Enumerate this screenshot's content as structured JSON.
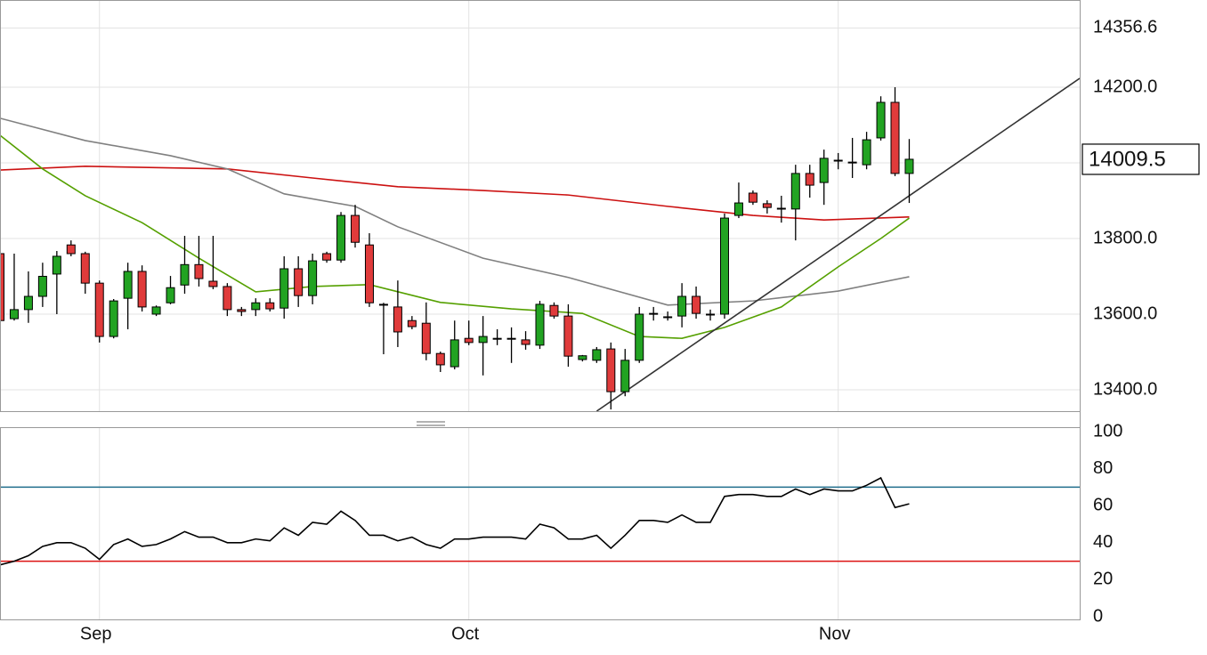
{
  "chart_data": [
    {
      "type": "candlestick",
      "xlim": [
        0,
        76
      ],
      "ylim": [
        13343.5,
        14430.6
      ],
      "yticks": [
        {
          "value": 13400,
          "label": "13400.0"
        },
        {
          "value": 13600,
          "label": "13600.0"
        },
        {
          "value": 13800,
          "label": "13800.0"
        },
        14000,
        {
          "value": 14200,
          "label": "14200.0"
        },
        14356.6
      ],
      "xticks": [
        {
          "value": 7,
          "label": "Sep"
        },
        {
          "value": 33,
          "label": "Oct"
        },
        {
          "value": 59,
          "label": "Nov"
        }
      ],
      "grid": true,
      "up_color": "#22a322",
      "down_color": "#e03b3b",
      "open": [
        13760,
        13588,
        13612,
        13647,
        13706,
        13783,
        13760,
        13682,
        13541,
        13642,
        13713,
        13600,
        13630,
        13677,
        13731,
        13687,
        13673,
        13612,
        13612,
        13630,
        13616,
        13720,
        13649,
        13760,
        13743,
        13861,
        13783,
        13626,
        13619,
        13583,
        13576,
        13496,
        13461,
        13536,
        13525,
        13536,
        13536,
        13532,
        13518,
        13623,
        13595,
        13480,
        13478,
        13508,
        13395,
        13478,
        13602,
        13593,
        13595,
        13647,
        13600,
        13600,
        13861,
        13920,
        13892,
        13880,
        13878,
        13972,
        13948,
        14007,
        14002,
        13995,
        14066,
        14160,
        13972
      ],
      "high": [
        13760,
        13760,
        13713,
        13736,
        13767,
        13795,
        13765,
        13689,
        13640,
        13736,
        13729,
        13623,
        13701,
        13807,
        13807,
        13807,
        13682,
        13619,
        13642,
        13642,
        13753,
        13753,
        13760,
        13765,
        13870,
        13889,
        13814,
        13630,
        13689,
        13595,
        13631,
        13501,
        13583,
        13583,
        13595,
        13560,
        13565,
        13555,
        13635,
        13631,
        13626,
        13492,
        13513,
        13525,
        13508,
        13619,
        13619,
        13607,
        13682,
        13673,
        13612,
        13866,
        13948,
        13927,
        13901,
        13913,
        13995,
        13995,
        14035,
        14026,
        14066,
        14082,
        14176,
        14200,
        14063
      ],
      "low": [
        13583,
        13583,
        13577,
        13619,
        13600,
        13753,
        13654,
        13525,
        13536,
        13560,
        13607,
        13595,
        13626,
        13654,
        13673,
        13666,
        13595,
        13595,
        13595,
        13607,
        13588,
        13619,
        13626,
        13736,
        13736,
        13776,
        13619,
        13494,
        13513,
        13560,
        13478,
        13447,
        13454,
        13518,
        13438,
        13518,
        13471,
        13506,
        13508,
        13588,
        13461,
        13475,
        13471,
        13348,
        13383,
        13471,
        13583,
        13583,
        13565,
        13588,
        13583,
        13588,
        13854,
        13889,
        13866,
        13842,
        13795,
        13908,
        13889,
        13983,
        13960,
        13983,
        14059,
        13965,
        13894
      ],
      "close": [
        13583,
        13612,
        13647,
        13700,
        13753,
        13760,
        13682,
        13541,
        13635,
        13713,
        13619,
        13619,
        13670,
        13731,
        13694,
        13673,
        13612,
        13607,
        13630,
        13614,
        13720,
        13649,
        13741,
        13743,
        13861,
        13790,
        13630,
        13626,
        13553,
        13567,
        13496,
        13466,
        13532,
        13525,
        13541,
        13536,
        13536,
        13520,
        13626,
        13595,
        13489,
        13490,
        13506,
        13395,
        13478,
        13600,
        13602,
        13593,
        13647,
        13602,
        13600,
        13854,
        13894,
        13896,
        13882,
        13880,
        13972,
        13941,
        14012,
        14007,
        14002,
        14061,
        14160,
        13972,
        14009.5
      ],
      "last_price": 14009.5,
      "series": [
        {
          "color": "#cc1111",
          "x": [
            0,
            6,
            16,
            22,
            28,
            34,
            40,
            47,
            53,
            58,
            64
          ],
          "values": [
            13981,
            13991,
            13984,
            13960,
            13937,
            13927,
            13915,
            13885,
            13861,
            13849,
            13857
          ]
        },
        {
          "color": "#808080",
          "x": [
            0,
            6,
            12,
            16,
            20,
            25,
            28,
            34,
            40,
            47,
            53,
            59,
            64
          ],
          "values": [
            14118,
            14059,
            14019,
            13984,
            13918,
            13885,
            13831,
            13748,
            13697,
            13624,
            13635,
            13661,
            13699
          ]
        },
        {
          "color": "#55a000",
          "x": [
            0,
            3,
            6,
            10,
            14,
            18,
            22,
            26,
            31,
            36,
            41,
            45,
            48,
            51,
            55,
            59,
            62,
            64
          ],
          "values": [
            14073,
            13984,
            13913,
            13842,
            13748,
            13659,
            13673,
            13678,
            13631,
            13614,
            13602,
            13541,
            13536,
            13565,
            13619,
            13725,
            13800,
            13854
          ]
        },
        {
          "color": "#333333",
          "x": [
            42,
            76
          ],
          "values": [
            13343.5,
            14223.5
          ]
        }
      ]
    },
    {
      "type": "line",
      "ylim": [
        0,
        100
      ],
      "yticks": [
        0,
        20,
        40,
        60,
        80,
        100
      ],
      "color": "#000000",
      "values": [
        28,
        30,
        33,
        38,
        40,
        40,
        37,
        31,
        39,
        42,
        38,
        39,
        42,
        46,
        43,
        43,
        40,
        40,
        42,
        41,
        48,
        44,
        51,
        50,
        57,
        52,
        44,
        44,
        41,
        43,
        39,
        37,
        42,
        42,
        43,
        43,
        43,
        42,
        50,
        48,
        42,
        42,
        44,
        37,
        44,
        52,
        52,
        51,
        55,
        51,
        51,
        65,
        66,
        66,
        65,
        65,
        69,
        66,
        69,
        68,
        68,
        71,
        75,
        59,
        61
      ],
      "levels": [
        {
          "value": 70,
          "color": "#1f6e8c"
        },
        {
          "value": 30,
          "color": "#dd1111"
        }
      ]
    }
  ]
}
